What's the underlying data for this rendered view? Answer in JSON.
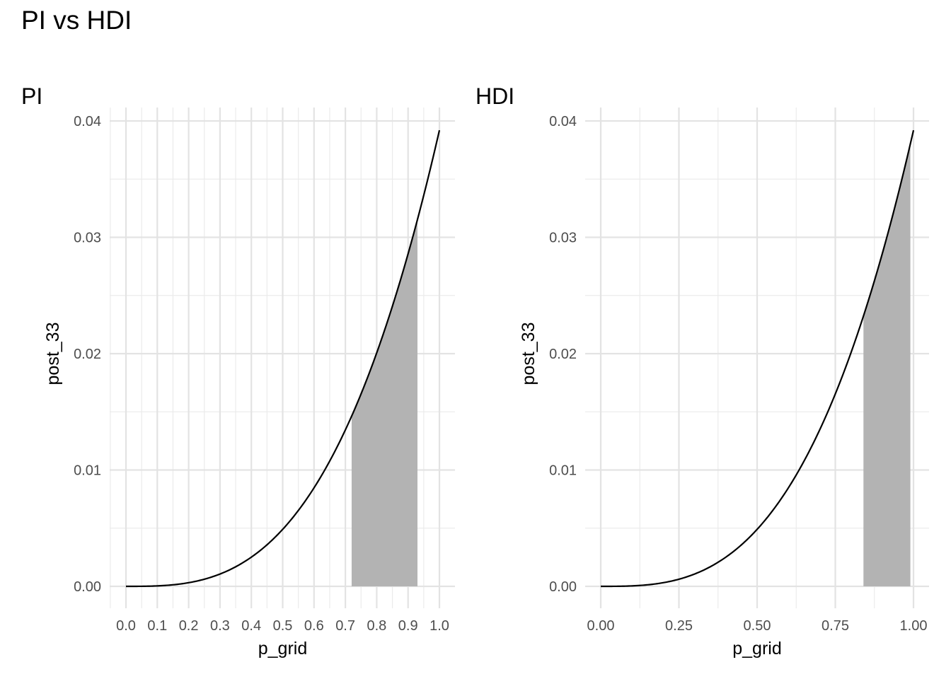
{
  "title": "PI vs HDI",
  "chart_data": [
    {
      "type": "area",
      "title": "PI",
      "xlabel": "p_grid",
      "ylabel": "post_33",
      "xlim": [
        0,
        1
      ],
      "ylim": [
        0,
        0.04
      ],
      "x_ticks": [
        "0.0",
        "0.1",
        "0.2",
        "0.3",
        "0.4",
        "0.5",
        "0.6",
        "0.7",
        "0.8",
        "0.9",
        "1.0"
      ],
      "y_ticks": [
        "0.00",
        "0.01",
        "0.02",
        "0.03",
        "0.04"
      ],
      "curve": {
        "formula": "0.0392 * x^3",
        "x_range": [
          0,
          1
        ]
      },
      "shaded_interval": [
        0.72,
        0.93
      ],
      "line_color": "#000000",
      "fill_color": "#b3b3b3",
      "grid": true
    },
    {
      "type": "area",
      "title": "HDI",
      "xlabel": "p_grid",
      "ylabel": "post_33",
      "xlim": [
        0,
        1
      ],
      "ylim": [
        0,
        0.04
      ],
      "x_ticks": [
        "0.00",
        "0.25",
        "0.50",
        "0.75",
        "1.00"
      ],
      "y_ticks": [
        "0.00",
        "0.01",
        "0.02",
        "0.03",
        "0.04"
      ],
      "curve": {
        "formula": "0.0392 * x^3",
        "x_range": [
          0,
          1
        ]
      },
      "shaded_interval": [
        0.84,
        0.99
      ],
      "line_color": "#000000",
      "fill_color": "#b3b3b3",
      "grid": true
    }
  ]
}
